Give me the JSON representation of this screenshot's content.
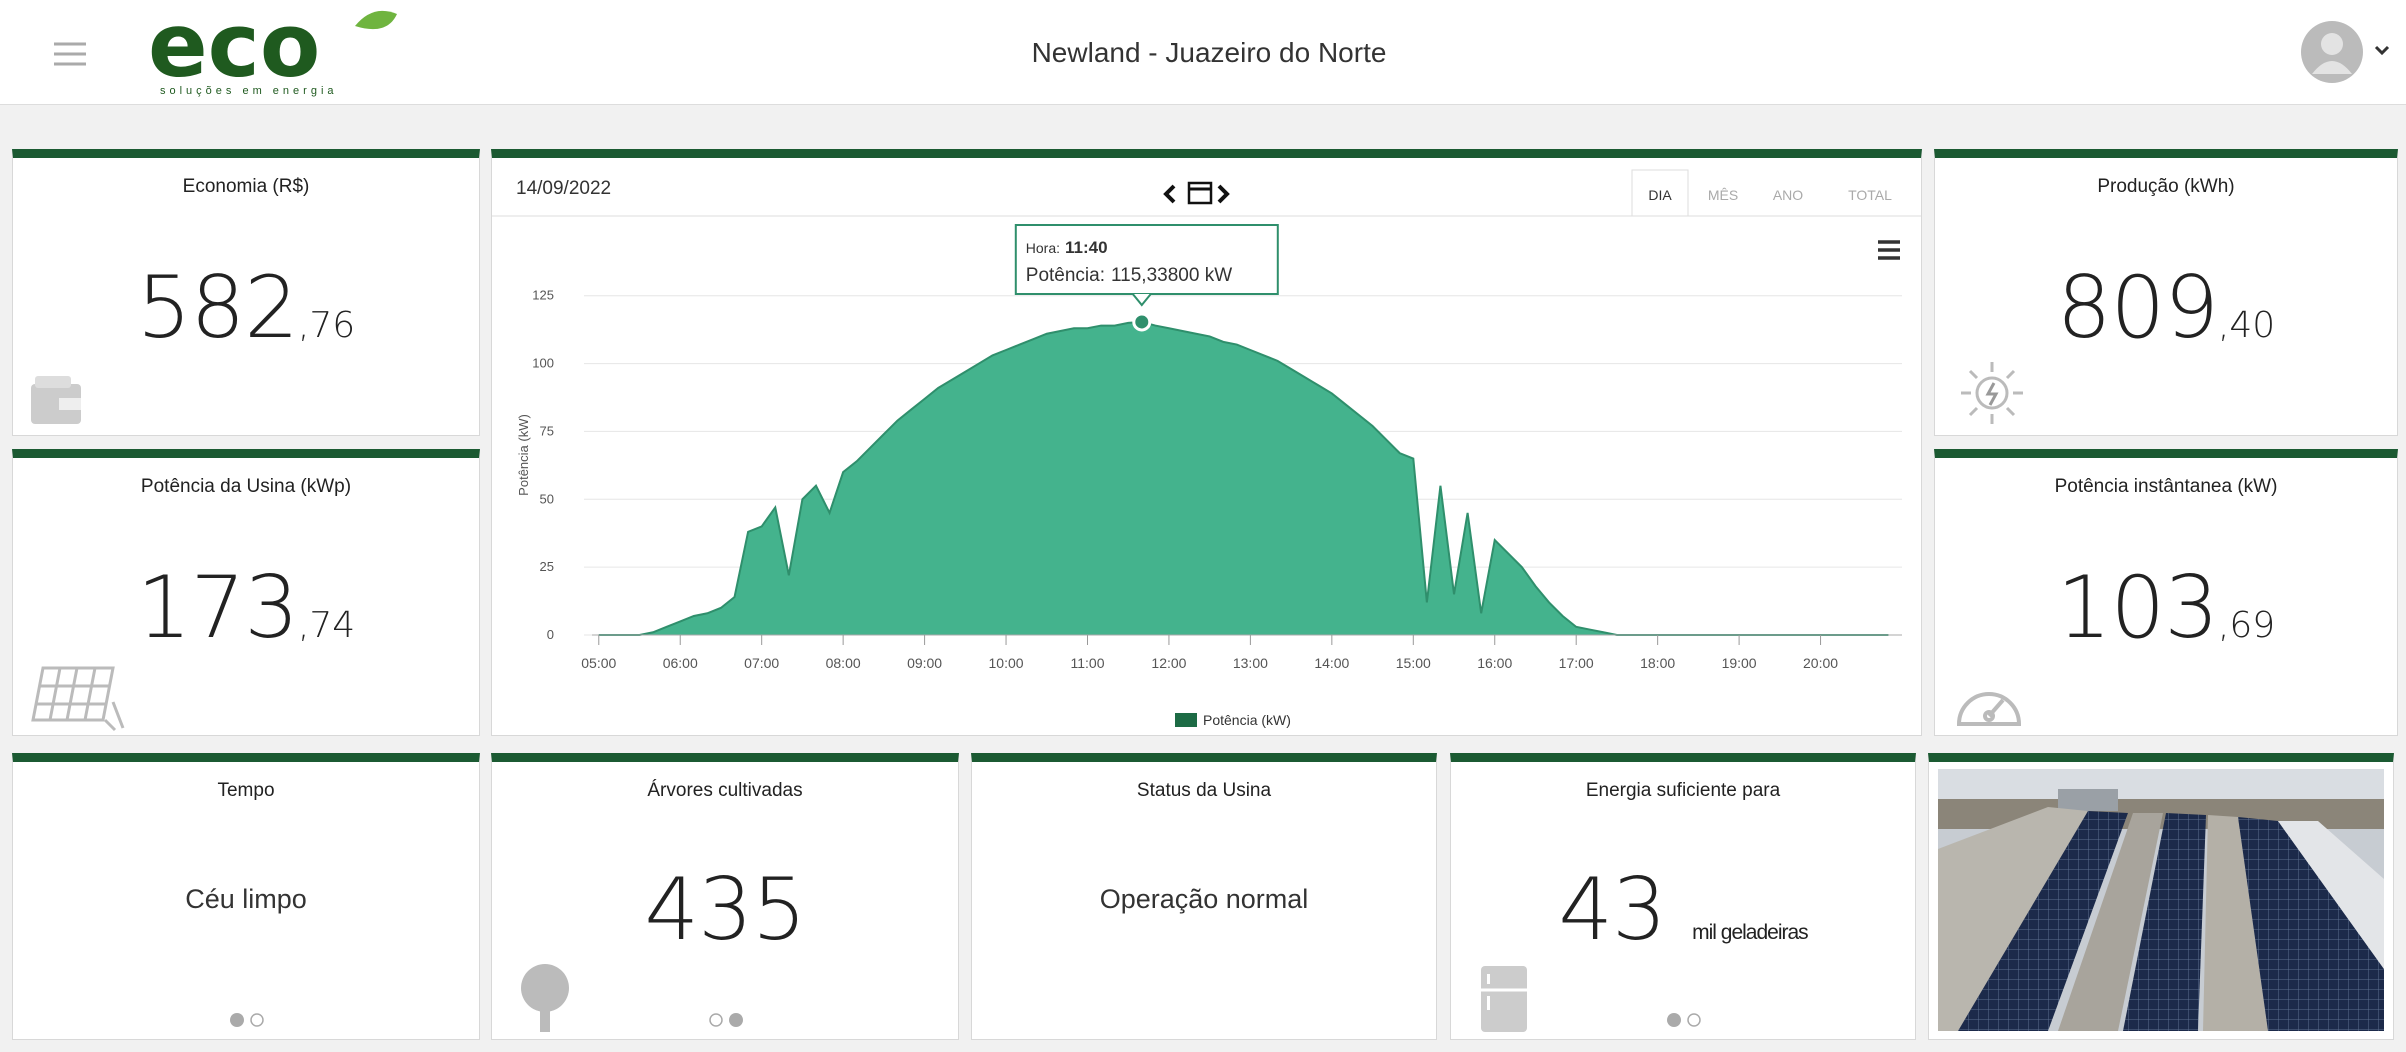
{
  "header": {
    "logo": "eco",
    "logo_tagline": "soluções em energia",
    "title": "Newland - Juazeiro do Norte"
  },
  "cards": {
    "economia": {
      "title": "Economia (R$)",
      "integer": "582",
      "decimal": ",76"
    },
    "potencia_usina": {
      "title": "Potência da Usina (kWp)",
      "integer": "173",
      "decimal": ",74"
    },
    "producao": {
      "title": "Produção (kWh)",
      "integer": "809",
      "decimal": ",40"
    },
    "potencia_instantanea": {
      "title": "Potência instântanea (kW)",
      "integer": "103",
      "decimal": ",69"
    },
    "tempo": {
      "title": "Tempo",
      "text": "Céu limpo"
    },
    "arvores": {
      "title": "Árvores cultivadas",
      "value": "435"
    },
    "status": {
      "title": "Status da Usina",
      "text": "Operação normal"
    },
    "energia": {
      "title": "Energia suficiente para",
      "value": "43",
      "unit": "mil geladeiras"
    }
  },
  "chart_header": {
    "date": "14/09/2022",
    "tabs": [
      "DIA",
      "MÊS",
      "ANO",
      "TOTAL"
    ]
  },
  "tooltip": {
    "hora_label": "Hora:",
    "hora": "11:40",
    "potencia_label": "Potência:",
    "potencia": "115,33800 kW"
  },
  "chart_data": {
    "type": "area",
    "y_label": "Potência (kW)",
    "x": [
      "05:00",
      "05:10",
      "05:20",
      "05:30",
      "05:40",
      "05:50",
      "06:00",
      "06:10",
      "06:20",
      "06:30",
      "06:40",
      "06:50",
      "07:00",
      "07:10",
      "07:20",
      "07:30",
      "07:40",
      "07:50",
      "08:00",
      "08:10",
      "08:20",
      "08:30",
      "08:40",
      "08:50",
      "09:00",
      "09:10",
      "09:20",
      "09:30",
      "09:40",
      "09:50",
      "10:00",
      "10:10",
      "10:20",
      "10:30",
      "10:40",
      "10:50",
      "11:00",
      "11:10",
      "11:20",
      "11:30",
      "11:40",
      "11:50",
      "12:00",
      "12:10",
      "12:20",
      "12:30",
      "12:40",
      "12:50",
      "13:00",
      "13:10",
      "13:20",
      "13:30",
      "13:40",
      "13:50",
      "14:00",
      "14:10",
      "14:20",
      "14:30",
      "14:40",
      "14:50",
      "15:00",
      "15:10",
      "15:20",
      "15:30",
      "15:40",
      "15:50",
      "16:00",
      "16:10",
      "16:20",
      "16:30",
      "16:40",
      "16:50",
      "17:00",
      "17:10",
      "17:20",
      "17:30",
      "17:40",
      "17:50",
      "18:00",
      "18:10",
      "18:20",
      "18:30",
      "18:40",
      "18:50",
      "19:00",
      "19:10",
      "19:20",
      "19:30",
      "19:40",
      "19:50",
      "20:00",
      "20:10",
      "20:20",
      "20:30",
      "20:40",
      "20:50"
    ],
    "series": [
      {
        "name": "Potência (kW)",
        "color": "#44b38d",
        "line_color": "#2f8f6c",
        "legend_color": "#1d6b45",
        "values": [
          0,
          0,
          0,
          0,
          1,
          3,
          5,
          7,
          8,
          10,
          14,
          38,
          40,
          47,
          22,
          50,
          55,
          45,
          60,
          64,
          69,
          74,
          79,
          83,
          87,
          91,
          94,
          97,
          100,
          103,
          105,
          107,
          109,
          111,
          112,
          113,
          113,
          114,
          114,
          115,
          115.338,
          114,
          113,
          112,
          111,
          110,
          108,
          107,
          105,
          103,
          101,
          98,
          95,
          92,
          89,
          85,
          81,
          77,
          72,
          67,
          65,
          12,
          55,
          15,
          45,
          8,
          35,
          30,
          25,
          18,
          12,
          7,
          3,
          2,
          1,
          0,
          0,
          0,
          0,
          0,
          0,
          0,
          0,
          0,
          0,
          0,
          0,
          0,
          0,
          0,
          0,
          0,
          0,
          0,
          0,
          0
        ]
      }
    ],
    "xlim": [
      "04:55",
      "21:00"
    ],
    "xticks": [
      "05:00",
      "06:00",
      "07:00",
      "08:00",
      "09:00",
      "10:00",
      "11:00",
      "12:00",
      "13:00",
      "14:00",
      "15:00",
      "16:00",
      "17:00",
      "18:00",
      "19:00",
      "20:00"
    ],
    "ylim": [
      0,
      140
    ],
    "yticks": [
      0,
      25,
      50,
      75,
      100,
      125
    ],
    "grid": true
  }
}
